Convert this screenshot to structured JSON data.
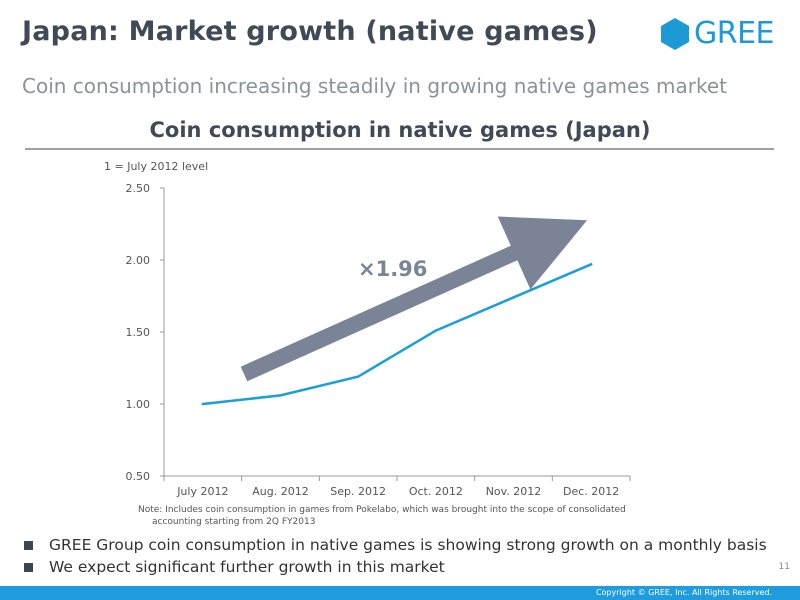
{
  "header": {
    "title": "Japan: Market growth (native games)",
    "subtitle": "Coin consumption increasing steadily in growing native games market",
    "logo_text": "GREE",
    "logo_color": "#1d9ad6"
  },
  "chart_data": {
    "type": "line",
    "title": "Coin consumption in native games (Japan)",
    "unit_label": "1 = July 2012 level",
    "categories": [
      "July 2012",
      "Aug. 2012",
      "Sep. 2012",
      "Oct. 2012",
      "Nov. 2012",
      "Dec. 2012"
    ],
    "series": [
      {
        "name": "Coin consumption",
        "values": [
          1.0,
          1.06,
          1.19,
          1.51,
          1.74,
          1.97
        ],
        "color": "#1b9fd9"
      }
    ],
    "ylim": [
      0.5,
      2.5
    ],
    "yticks": [
      "0.50",
      "1.00",
      "1.50",
      "2.00",
      "2.50"
    ],
    "annotation": {
      "text": "×1.96",
      "color": "#7a8496"
    },
    "note": "Note: Includes coin consumption in games from Pokelabo, which was brought into the scope of consolidated accounting starting from 2Q FY2013"
  },
  "bullets": [
    "GREE Group coin consumption in native games is showing strong growth on a monthly basis",
    "We expect significant further growth in this market"
  ],
  "footer": {
    "page_number": "11",
    "copyright": "Copyright © GREE, Inc. All Rights Reserved.",
    "color": "#1e9cdd"
  }
}
